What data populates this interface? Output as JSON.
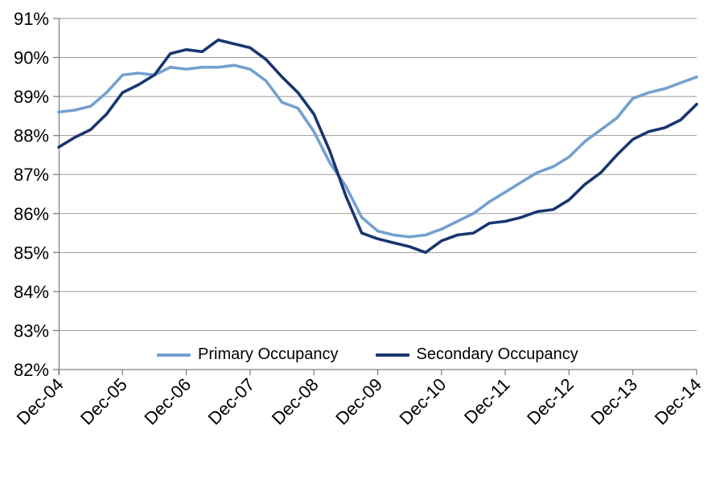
{
  "chart_data": {
    "type": "line",
    "title": "",
    "xlabel": "",
    "ylabel": "",
    "grid": "horizontal",
    "legend_position": "bottom-inside",
    "x_tick_labels": [
      "Dec-04",
      "Dec-05",
      "Dec-06",
      "Dec-07",
      "Dec-08",
      "Dec-09",
      "Dec-10",
      "Dec-11",
      "Dec-12",
      "Dec-13",
      "Dec-14"
    ],
    "points_per_year": 4,
    "x_note": "quarterly points from Dec-04 to Dec-14 (41 points)",
    "y_axis": {
      "min": 82,
      "max": 91,
      "step": 1,
      "format": "percent",
      "tick_labels": [
        "91%",
        "90%",
        "89%",
        "88%",
        "87%",
        "86%",
        "85%",
        "84%",
        "83%",
        "82%"
      ]
    },
    "series": [
      {
        "name": "Primary Occupancy",
        "color": "#73A0D0",
        "values": [
          88.6,
          88.65,
          88.75,
          89.1,
          89.55,
          89.6,
          89.55,
          89.75,
          89.7,
          89.75,
          89.75,
          89.8,
          89.7,
          89.4,
          88.85,
          88.7,
          88.1,
          87.3,
          86.7,
          85.9,
          85.55,
          85.45,
          85.4,
          85.45,
          85.6,
          85.8,
          86.0,
          86.3,
          86.55,
          86.8,
          87.05,
          87.2,
          87.45,
          87.85,
          88.15,
          88.45,
          88.95,
          89.1,
          89.2,
          89.35,
          89.5
        ]
      },
      {
        "name": "Secondary Occupancy",
        "color": "#1A3670",
        "values": [
          87.7,
          87.95,
          88.15,
          88.55,
          89.1,
          89.3,
          89.55,
          90.1,
          90.2,
          90.15,
          90.45,
          90.35,
          90.25,
          89.95,
          89.5,
          89.1,
          88.55,
          87.6,
          86.45,
          85.5,
          85.35,
          85.25,
          85.15,
          85.0,
          85.3,
          85.45,
          85.5,
          85.75,
          85.8,
          85.9,
          86.05,
          86.1,
          86.35,
          86.75,
          87.05,
          87.5,
          87.9,
          88.1,
          88.2,
          88.4,
          88.8
        ]
      }
    ],
    "colors": {
      "gridline": "#9A9A9A",
      "axis": "#808080",
      "text": "#000000"
    }
  }
}
